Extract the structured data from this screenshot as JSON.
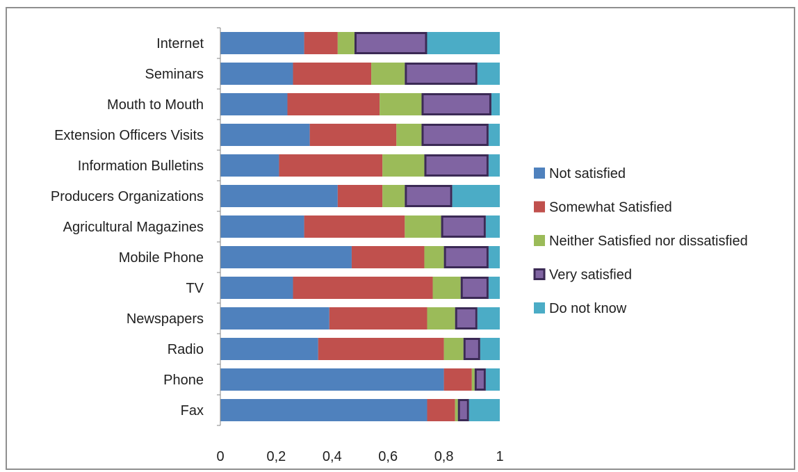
{
  "chart_data": {
    "type": "bar",
    "orientation": "horizontal",
    "stacked": true,
    "categories": [
      "Internet",
      "Seminars",
      "Mouth to Mouth",
      "Extension Officers Visits",
      "Information Bulletins",
      "Producers Organizations",
      "Agricultural Magazines",
      "Mobile Phone",
      "TV",
      "Newspapers",
      "Radio",
      "Phone",
      "Fax"
    ],
    "series": [
      {
        "name": "Not satisfied",
        "color": "#4F81BD",
        "values": [
          0.3,
          0.26,
          0.24,
          0.32,
          0.21,
          0.42,
          0.3,
          0.47,
          0.26,
          0.39,
          0.35,
          0.8,
          0.74
        ]
      },
      {
        "name": "Somewhat Satisfied",
        "color": "#C0504D",
        "values": [
          0.12,
          0.28,
          0.33,
          0.31,
          0.37,
          0.16,
          0.36,
          0.26,
          0.5,
          0.35,
          0.45,
          0.1,
          0.1
        ]
      },
      {
        "name": "Neither Satisfied nor dissatisfied",
        "color": "#9BBB59",
        "values": [
          0.06,
          0.12,
          0.15,
          0.09,
          0.15,
          0.08,
          0.13,
          0.07,
          0.1,
          0.1,
          0.07,
          0.01,
          0.01
        ]
      },
      {
        "name": "Very satisfied",
        "color": "#8064A2",
        "values": [
          0.26,
          0.26,
          0.25,
          0.24,
          0.23,
          0.17,
          0.16,
          0.16,
          0.1,
          0.08,
          0.06,
          0.04,
          0.04
        ]
      },
      {
        "name": "Do not know",
        "color": "#4BACC6",
        "values": [
          0.26,
          0.08,
          0.03,
          0.04,
          0.04,
          0.17,
          0.05,
          0.04,
          0.04,
          0.08,
          0.07,
          0.05,
          0.11
        ]
      }
    ],
    "x_ticks": [
      "0",
      "0,2",
      "0,4",
      "0,6",
      "0,8",
      "1"
    ],
    "xlim": [
      0,
      1
    ],
    "grid": false,
    "legend_position": "right",
    "very_satisfied_outline": "#3B2A55"
  }
}
